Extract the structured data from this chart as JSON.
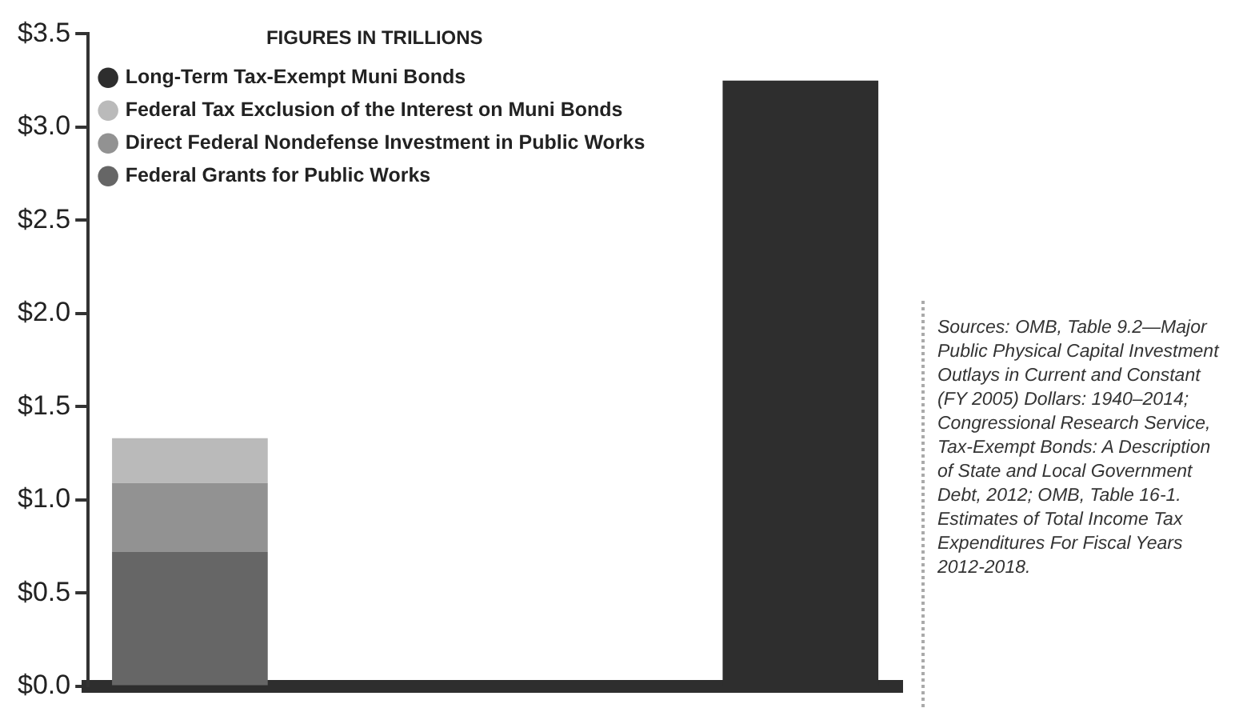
{
  "chart_data": {
    "type": "bar",
    "stacked": true,
    "legend_title": "FIGURES IN TRILLIONS",
    "legend": "top left",
    "grid": false,
    "tick_labels": "y",
    "categories": [
      null,
      null,
      null,
      null
    ],
    "series": [
      {
        "name": "Federal Grants for Public Works",
        "color": "#666666",
        "values": [
          0.72,
          null,
          null,
          null
        ]
      },
      {
        "name": "Direct Federal Nondefense Investment in Public Works",
        "color": "#929292",
        "values": [
          0.37,
          null,
          null,
          null
        ]
      },
      {
        "name": "Federal Tax Exclusion of the Interest on Muni Bonds",
        "color": "#bababa",
        "values": [
          0.24,
          null,
          null,
          null
        ]
      },
      {
        "name": "Long-Term Tax-Exempt Muni Bonds",
        "color": "#2e2e2e",
        "values": [
          null,
          null,
          null,
          3.25
        ]
      }
    ],
    "ylim": [
      0,
      3.5
    ],
    "yticks": [
      {
        "value": 0,
        "label": "$0.0"
      },
      {
        "value": 0.5,
        "label": "$0.5"
      },
      {
        "value": 1,
        "label": "$1.0"
      },
      {
        "value": 1.5,
        "label": "$1.5"
      },
      {
        "value": 2,
        "label": "$2.0"
      },
      {
        "value": 2.5,
        "label": "$2.5"
      },
      {
        "value": 3,
        "label": "$3.0"
      },
      {
        "value": 3.5,
        "label": "$3.5"
      }
    ],
    "annotations": [
      "Sources: OMB, Table 9.2—Major Public Physical Capital Investment Outlays in Current and Constant (FY 2005) Dollars: 1940–2014; Congressional Research Service, Tax-Exempt Bonds: A Description of State and Local Government Debt, 2012; OMB, Table 16-1. Estimates of Total Income Tax Expenditures For Fiscal Years 2012-2018."
    ]
  }
}
